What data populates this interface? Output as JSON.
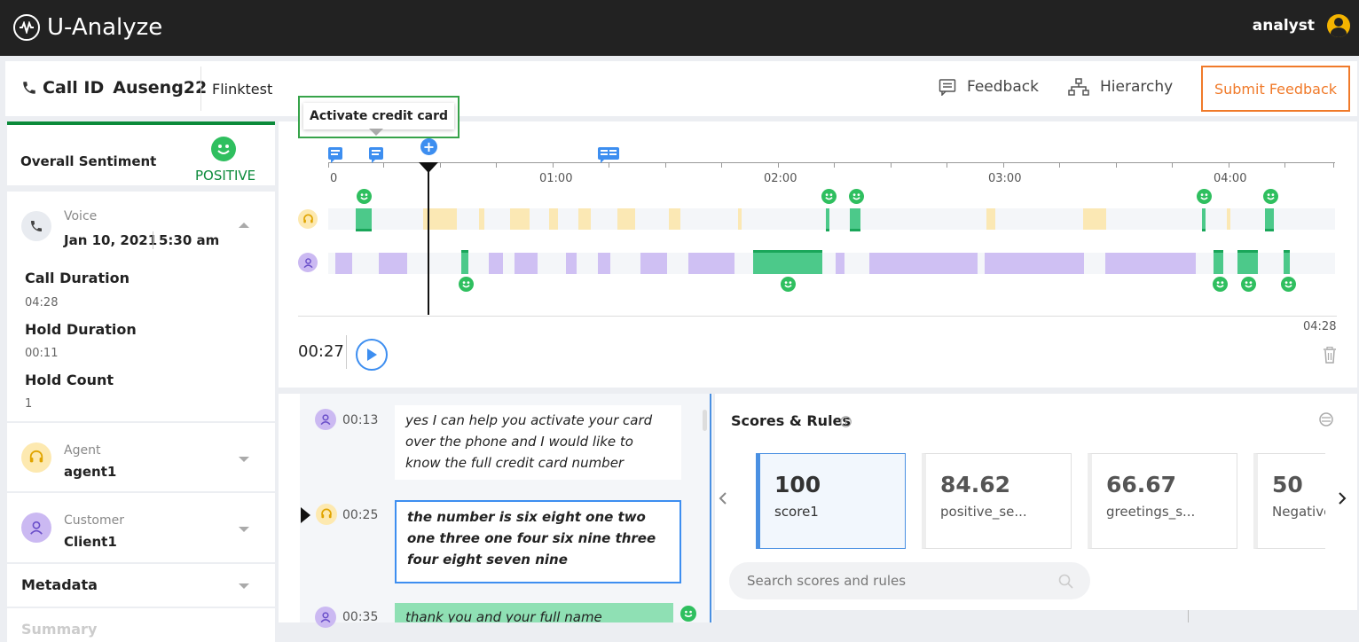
{
  "app": {
    "name": "U-Analyze",
    "user": "analyst"
  },
  "header": {
    "call_id_label": "Call ID",
    "call_id": "Auseng22",
    "project": "Flinktest",
    "feedback_label": "Feedback",
    "hierarchy_label": "Hierarchy",
    "submit_label": "Submit Feedback"
  },
  "sentiment": {
    "label": "Overall Sentiment",
    "value": "POSITIVE"
  },
  "call": {
    "channel": "Voice",
    "date": "Jan 10, 2021",
    "time": "5:30 am",
    "call_duration_label": "Call Duration",
    "call_duration": "04:28",
    "hold_duration_label": "Hold Duration",
    "hold_duration": "00:11",
    "hold_count_label": "Hold Count",
    "hold_count": "1"
  },
  "agent": {
    "label": "Agent",
    "name": "agent1"
  },
  "customer": {
    "label": "Customer",
    "name": "Client1"
  },
  "metadata_label": "Metadata",
  "summary_label": "Summary",
  "timeline": {
    "tooltip": "Activate credit card",
    "ticks": [
      "0",
      "01:00",
      "02:00",
      "03:00",
      "04:00"
    ],
    "current_time": "00:27",
    "total_time": "04:28",
    "colors": {
      "agent": "#fbe8b4",
      "customer": "#cfc0f3",
      "positive": "#4cc98a"
    }
  },
  "transcript": [
    {
      "speaker": "customer",
      "time": "00:13",
      "text": "yes I can help you activate your card over the phone and I would like to know the full credit card number"
    },
    {
      "speaker": "agent",
      "time": "00:25",
      "text": "the number is six eight one two one three one four six nine three four eight seven nine"
    },
    {
      "speaker": "customer",
      "time": "00:35",
      "text": "thank you and your full name"
    }
  ],
  "scores": {
    "title": "Scores & Rules",
    "search_placeholder": "Search scores and rules",
    "cards": [
      {
        "value": "100",
        "name": "score1"
      },
      {
        "value": "84.62",
        "name": "positive_se..."
      },
      {
        "value": "66.67",
        "name": "greetings_s..."
      },
      {
        "value": "50",
        "name": "Negative"
      }
    ]
  }
}
